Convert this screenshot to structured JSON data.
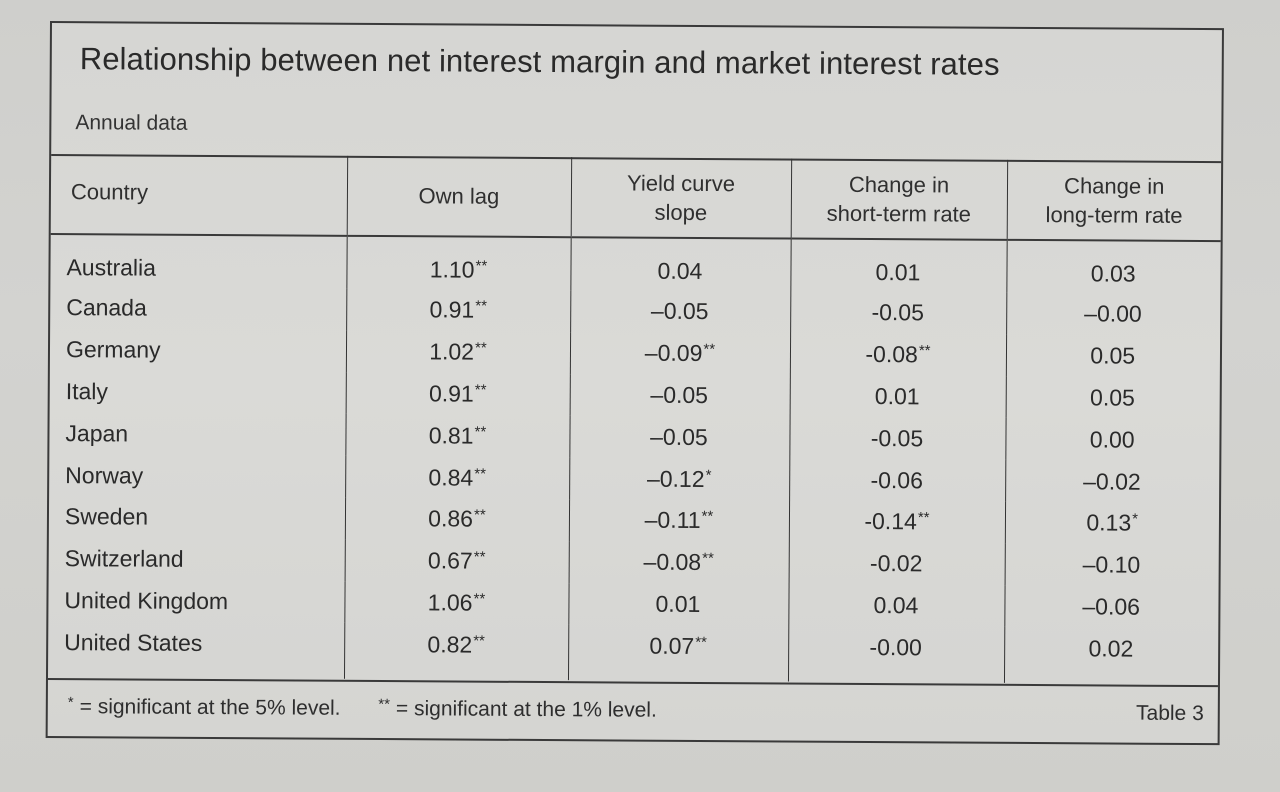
{
  "document": {
    "title": "Relationship between net interest margin and market interest rates",
    "subtitle": "Annual data",
    "table_label": "Table 3"
  },
  "table": {
    "columns": [
      {
        "key": "country",
        "label_lines": [
          "Country"
        ]
      },
      {
        "key": "own_lag",
        "label_lines": [
          "Own lag"
        ]
      },
      {
        "key": "yield_curve_slope",
        "label_lines": [
          "Yield curve",
          "slope"
        ]
      },
      {
        "key": "change_short_term",
        "label_lines": [
          "Change in",
          "short-term rate"
        ]
      },
      {
        "key": "change_long_term",
        "label_lines": [
          "Change in",
          "long-term rate"
        ]
      }
    ],
    "rows": [
      {
        "country": "Australia",
        "own_lag": {
          "v": "1.10",
          "sig": "**"
        },
        "yield_curve_slope": {
          "v": "0.04",
          "sig": ""
        },
        "change_short_term": {
          "v": "0.01",
          "sig": ""
        },
        "change_long_term": {
          "v": "0.03",
          "sig": ""
        }
      },
      {
        "country": "Canada",
        "own_lag": {
          "v": "0.91",
          "sig": "**"
        },
        "yield_curve_slope": {
          "v": "–0.05",
          "sig": ""
        },
        "change_short_term": {
          "v": "-0.05",
          "sig": ""
        },
        "change_long_term": {
          "v": "–0.00",
          "sig": ""
        }
      },
      {
        "country": "Germany",
        "own_lag": {
          "v": "1.02",
          "sig": "**"
        },
        "yield_curve_slope": {
          "v": "–0.09",
          "sig": "**"
        },
        "change_short_term": {
          "v": "-0.08",
          "sig": "**"
        },
        "change_long_term": {
          "v": "0.05",
          "sig": ""
        }
      },
      {
        "country": "Italy",
        "own_lag": {
          "v": "0.91",
          "sig": "**"
        },
        "yield_curve_slope": {
          "v": "–0.05",
          "sig": ""
        },
        "change_short_term": {
          "v": "0.01",
          "sig": ""
        },
        "change_long_term": {
          "v": "0.05",
          "sig": ""
        }
      },
      {
        "country": "Japan",
        "own_lag": {
          "v": "0.81",
          "sig": "**"
        },
        "yield_curve_slope": {
          "v": "–0.05",
          "sig": ""
        },
        "change_short_term": {
          "v": "-0.05",
          "sig": ""
        },
        "change_long_term": {
          "v": "0.00",
          "sig": ""
        }
      },
      {
        "country": "Norway",
        "own_lag": {
          "v": "0.84",
          "sig": "**"
        },
        "yield_curve_slope": {
          "v": "–0.12",
          "sig": "*"
        },
        "change_short_term": {
          "v": "-0.06",
          "sig": ""
        },
        "change_long_term": {
          "v": "–0.02",
          "sig": ""
        }
      },
      {
        "country": "Sweden",
        "own_lag": {
          "v": "0.86",
          "sig": "**"
        },
        "yield_curve_slope": {
          "v": "–0.11",
          "sig": "**"
        },
        "change_short_term": {
          "v": "-0.14",
          "sig": "**"
        },
        "change_long_term": {
          "v": "0.13",
          "sig": "*"
        }
      },
      {
        "country": "Switzerland",
        "own_lag": {
          "v": "0.67",
          "sig": "**"
        },
        "yield_curve_slope": {
          "v": "–0.08",
          "sig": "**"
        },
        "change_short_term": {
          "v": "-0.02",
          "sig": ""
        },
        "change_long_term": {
          "v": "–0.10",
          "sig": ""
        }
      },
      {
        "country": "United Kingdom",
        "own_lag": {
          "v": "1.06",
          "sig": "**"
        },
        "yield_curve_slope": {
          "v": "0.01",
          "sig": ""
        },
        "change_short_term": {
          "v": "0.04",
          "sig": ""
        },
        "change_long_term": {
          "v": "–0.06",
          "sig": ""
        }
      },
      {
        "country": "United States",
        "own_lag": {
          "v": "0.82",
          "sig": "**"
        },
        "yield_curve_slope": {
          "v": "0.07",
          "sig": "**"
        },
        "change_short_term": {
          "v": "-0.00",
          "sig": ""
        },
        "change_long_term": {
          "v": "0.02",
          "sig": ""
        }
      }
    ]
  },
  "footnotes": [
    {
      "mark": "*",
      "text": "= significant at the 5% level."
    },
    {
      "mark": "**",
      "text": "= significant at the 1% level."
    }
  ],
  "chart_data": {
    "type": "table",
    "title": "Relationship between net interest margin and market interest rates",
    "subtitle": "Annual data",
    "categories": [
      "Australia",
      "Canada",
      "Germany",
      "Italy",
      "Japan",
      "Norway",
      "Sweden",
      "Switzerland",
      "United Kingdom",
      "United States"
    ],
    "series": [
      {
        "name": "Own lag",
        "values": [
          1.1,
          0.91,
          1.02,
          0.91,
          0.81,
          0.84,
          0.86,
          0.67,
          1.06,
          0.82
        ],
        "significance": [
          "**",
          "**",
          "**",
          "**",
          "**",
          "**",
          "**",
          "**",
          "**",
          "**"
        ]
      },
      {
        "name": "Yield curve slope",
        "values": [
          0.04,
          -0.05,
          -0.09,
          -0.05,
          -0.05,
          -0.12,
          -0.11,
          -0.08,
          0.01,
          0.07
        ],
        "significance": [
          "",
          "",
          "**",
          "",
          "",
          "*",
          "**",
          "**",
          "",
          "**"
        ]
      },
      {
        "name": "Change in short-term rate",
        "values": [
          0.01,
          -0.05,
          -0.08,
          0.01,
          -0.05,
          -0.06,
          -0.14,
          -0.02,
          0.04,
          -0.0
        ],
        "significance": [
          "",
          "",
          "**",
          "",
          "",
          "",
          "**",
          "",
          "",
          ""
        ]
      },
      {
        "name": "Change in long-term rate",
        "values": [
          0.03,
          -0.0,
          0.05,
          0.05,
          0.0,
          -0.02,
          0.13,
          -0.1,
          -0.06,
          0.02
        ],
        "significance": [
          "",
          "",
          "",
          "",
          "",
          "",
          "*",
          "",
          "",
          ""
        ]
      }
    ],
    "legend": {
      "*": "significant at the 5% level",
      "**": "significant at the 1% level"
    },
    "label": "Table 3"
  }
}
